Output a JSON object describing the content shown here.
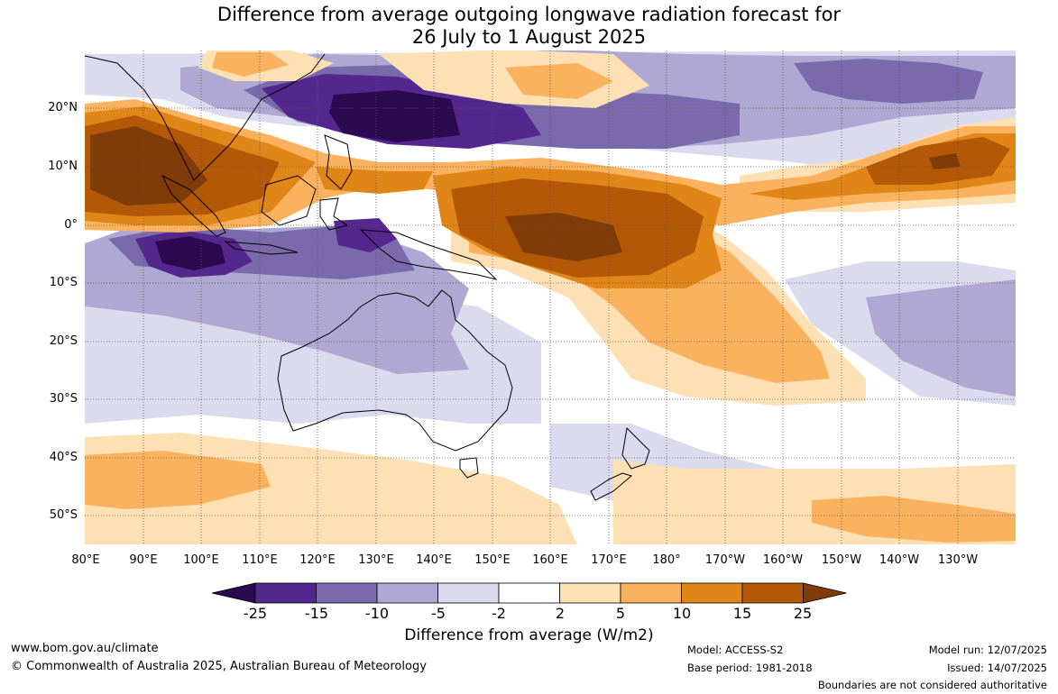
{
  "title_line1": "Difference from average outgoing longwave radiation forecast for",
  "title_line2": "26 July to 1 August 2025",
  "lat_labels": [
    "20°N",
    "10°N",
    "0°",
    "10°S",
    "20°S",
    "30°S",
    "40°S",
    "50°S"
  ],
  "lon_labels": [
    "80°E",
    "90°E",
    "100°E",
    "110°E",
    "120°E",
    "130°E",
    "140°E",
    "150°E",
    "160°E",
    "170°E",
    "180°",
    "170°W",
    "160°W",
    "150°W",
    "140°W",
    "130°W"
  ],
  "colorbar": {
    "ticks": [
      "-25",
      "-15",
      "-10",
      "-5",
      "-2",
      "2",
      "5",
      "10",
      "15",
      "25"
    ],
    "colors": [
      "#2b0a4f",
      "#54278f",
      "#7a6aac",
      "#aea8d2",
      "#dadbee",
      "#ffffff",
      "#fde0b4",
      "#fbb25e",
      "#e08518",
      "#b35806",
      "#7f3b08"
    ],
    "title": "Difference from average (W/m2)"
  },
  "footer": {
    "url": "www.bom.gov.au/climate",
    "copyright": "© Commonwealth of Australia 2025, Australian Bureau of Meteorology",
    "model": "Model: ACCESS-S2",
    "base_period": "Base period: 1981-2018",
    "model_run": "Model run: 12/07/2025",
    "issued": "Issued: 14/07/2025",
    "disclaimer": "Boundaries are not considered authoritative"
  }
}
